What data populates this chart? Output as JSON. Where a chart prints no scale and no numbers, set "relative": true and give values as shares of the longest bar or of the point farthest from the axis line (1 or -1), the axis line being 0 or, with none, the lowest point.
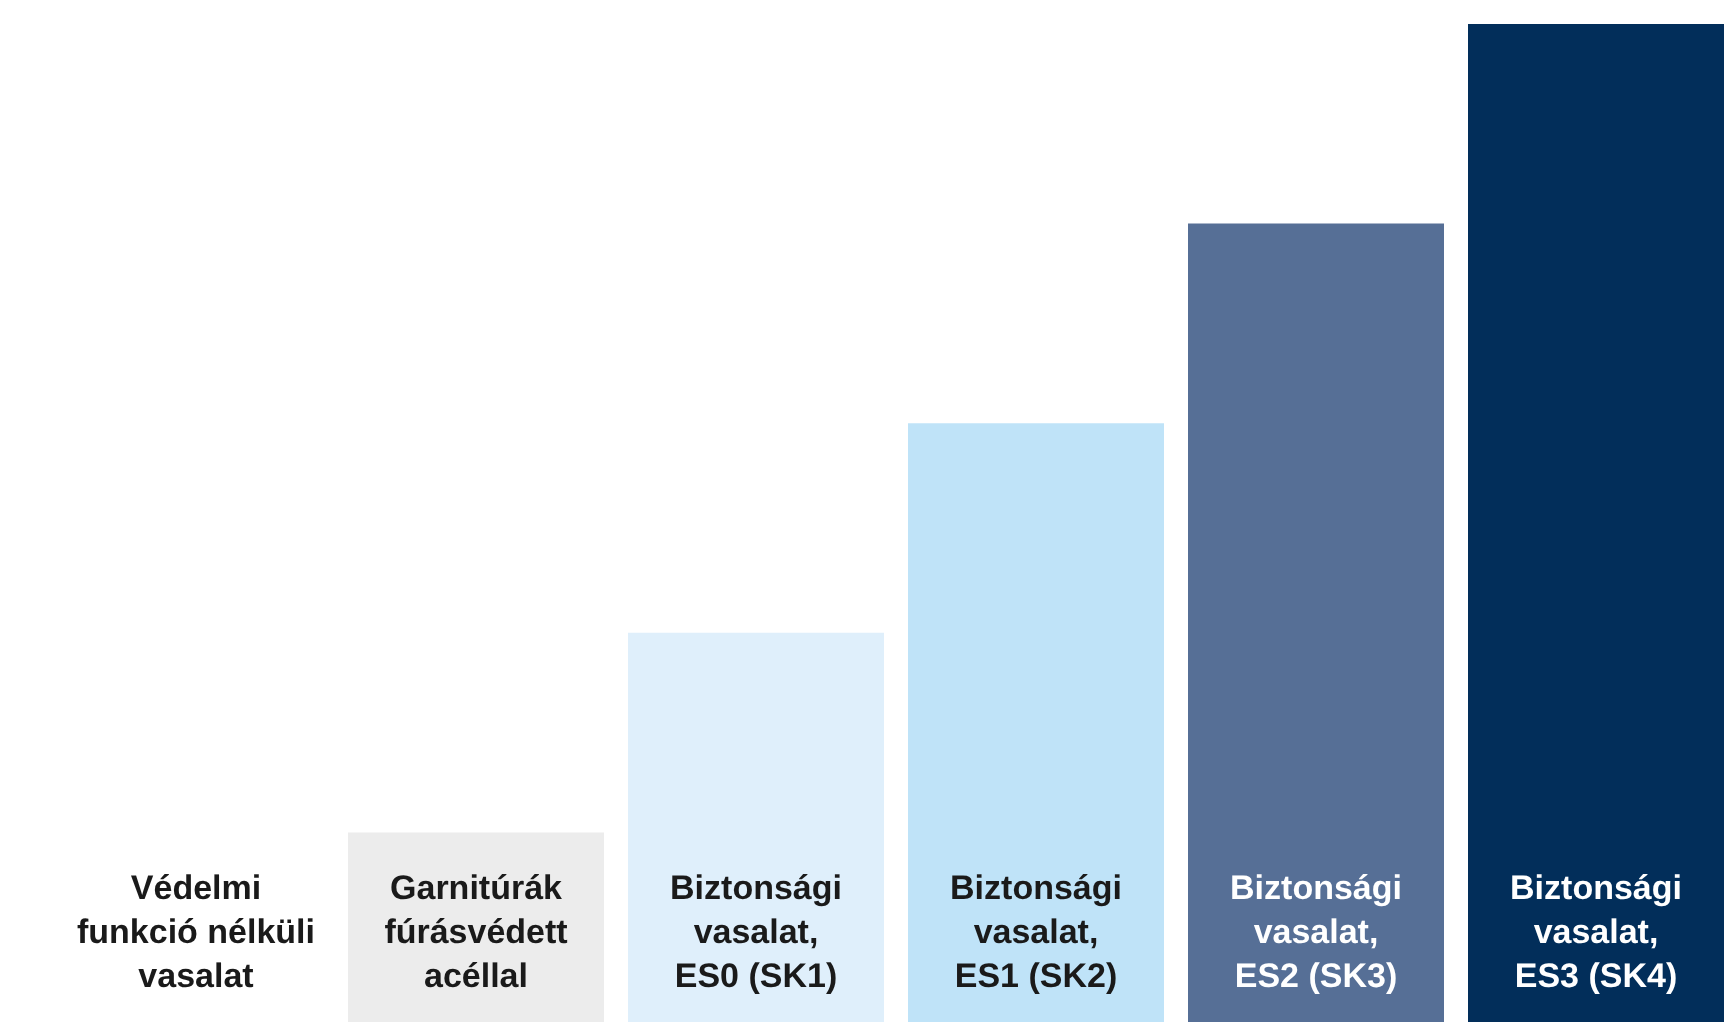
{
  "chart_data": {
    "type": "bar",
    "relative": true,
    "categories": [
      "Védelmi\nfunkció nélküli\nvasalat",
      "Garnitúrák\nfúrásvédett\nacéllal",
      "Biztonsági\nvasalat,\nES0 (SK1)",
      "Biztonsági\nvasalat,\nES1 (SK2)",
      "Biztonsági\nvasalat,\nES2 (SK3)",
      "Biztonsági\nvasalat,\nES3 (SK4)"
    ],
    "values": [
      0,
      0.19,
      0.39,
      0.6,
      0.8,
      1
    ],
    "colors": [
      "#ffffff",
      "#ececec",
      "#dfeffb",
      "#bfe3f8",
      "#566f96",
      "#022e5a"
    ]
  }
}
